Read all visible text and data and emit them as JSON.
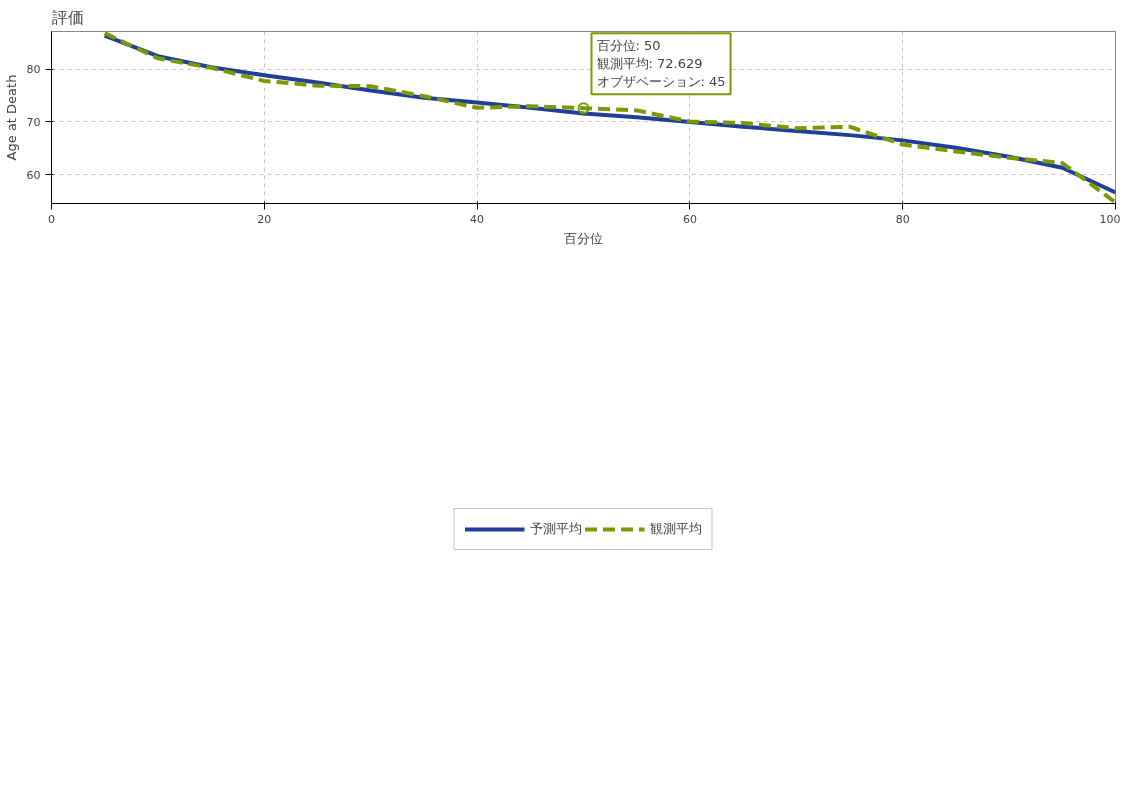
{
  "chart_data": {
    "type": "line",
    "title": "評価",
    "xlabel": "百分位",
    "ylabel": "Age at Death",
    "x": [
      5,
      10,
      15,
      20,
      25,
      30,
      35,
      40,
      45,
      50,
      55,
      60,
      65,
      70,
      75,
      80,
      85,
      90,
      95,
      100
    ],
    "series": [
      {
        "name": "予測平均",
        "color": "#1f3f99",
        "line_style": "solid",
        "values": [
          86.4,
          82.5,
          80.4,
          78.9,
          77.5,
          76.0,
          74.6,
          73.7,
          72.7,
          71.6,
          70.9,
          70.0,
          69.1,
          68.3,
          67.5,
          66.5,
          65.1,
          63.4,
          61.3,
          56.6
        ]
      },
      {
        "name": "観測平均",
        "color": "#7a9a01",
        "line_style": "dashed",
        "values": [
          86.9,
          82.1,
          80.3,
          77.8,
          76.9,
          76.8,
          74.9,
          72.7,
          73.0,
          72.629,
          72.2,
          70.1,
          69.8,
          68.8,
          69.1,
          65.7,
          64.4,
          63.2,
          62.2,
          54.7
        ]
      }
    ],
    "xlim": [
      0,
      100
    ],
    "xticks": [
      0,
      20,
      40,
      60,
      80,
      100
    ],
    "ylim": [
      54.5,
      87.2
    ],
    "yticks": [
      60,
      70,
      80
    ],
    "grid": true,
    "legend": "bottom",
    "marker": "none",
    "annotations": [
      {
        "text": "百分位:  50\n観測平均:  72.629\nオブザベーション: 45",
        "x": 50,
        "y": 72.629
      }
    ]
  }
}
